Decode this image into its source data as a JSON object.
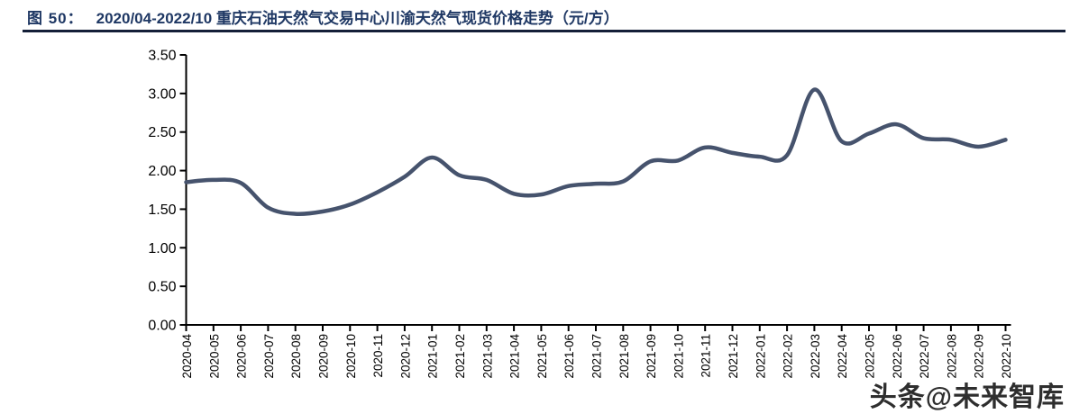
{
  "header": {
    "figure_label": "图 50：",
    "title": "2020/04-2022/10 重庆石油天然气交易中心川渝天然气现货价格走势（元/方）"
  },
  "watermark": "头条@未来智库",
  "colors": {
    "line": "#46536D",
    "title_text": "#1F3864",
    "title_rule": "#141F38",
    "axis": "#000000",
    "tick_label": "#000000"
  },
  "chart_data": {
    "type": "line",
    "title": "2020/04-2022/10 重庆石油天然气交易中心川渝天然气现货价格走势（元/方）",
    "unit": "元/方",
    "x": [
      "2020-04",
      "2020-05",
      "2020-06",
      "2020-07",
      "2020-08",
      "2020-09",
      "2020-10",
      "2020-11",
      "2020-12",
      "2021-01",
      "2021-02",
      "2021-03",
      "2021-04",
      "2021-05",
      "2021-06",
      "2021-07",
      "2021-08",
      "2021-09",
      "2021-10",
      "2021-11",
      "2021-12",
      "2022-01",
      "2022-02",
      "2022-03",
      "2022-04",
      "2022-05",
      "2022-06",
      "2022-07",
      "2022-08",
      "2022-09",
      "2022-10"
    ],
    "values": [
      1.85,
      1.88,
      1.84,
      1.52,
      1.44,
      1.47,
      1.56,
      1.72,
      1.92,
      2.17,
      1.94,
      1.88,
      1.7,
      1.69,
      1.8,
      1.83,
      1.86,
      2.12,
      2.13,
      2.3,
      2.23,
      2.18,
      2.2,
      3.05,
      2.38,
      2.48,
      2.6,
      2.42,
      2.4,
      2.31,
      2.4
    ],
    "xlabel": "",
    "ylabel": "",
    "ylim": [
      0,
      3.5
    ],
    "ytick_labels": [
      "0.00",
      "0.50",
      "1.00",
      "1.50",
      "2.00",
      "2.50",
      "3.00",
      "3.50"
    ],
    "grid": false,
    "legend": false,
    "smooth": true
  }
}
